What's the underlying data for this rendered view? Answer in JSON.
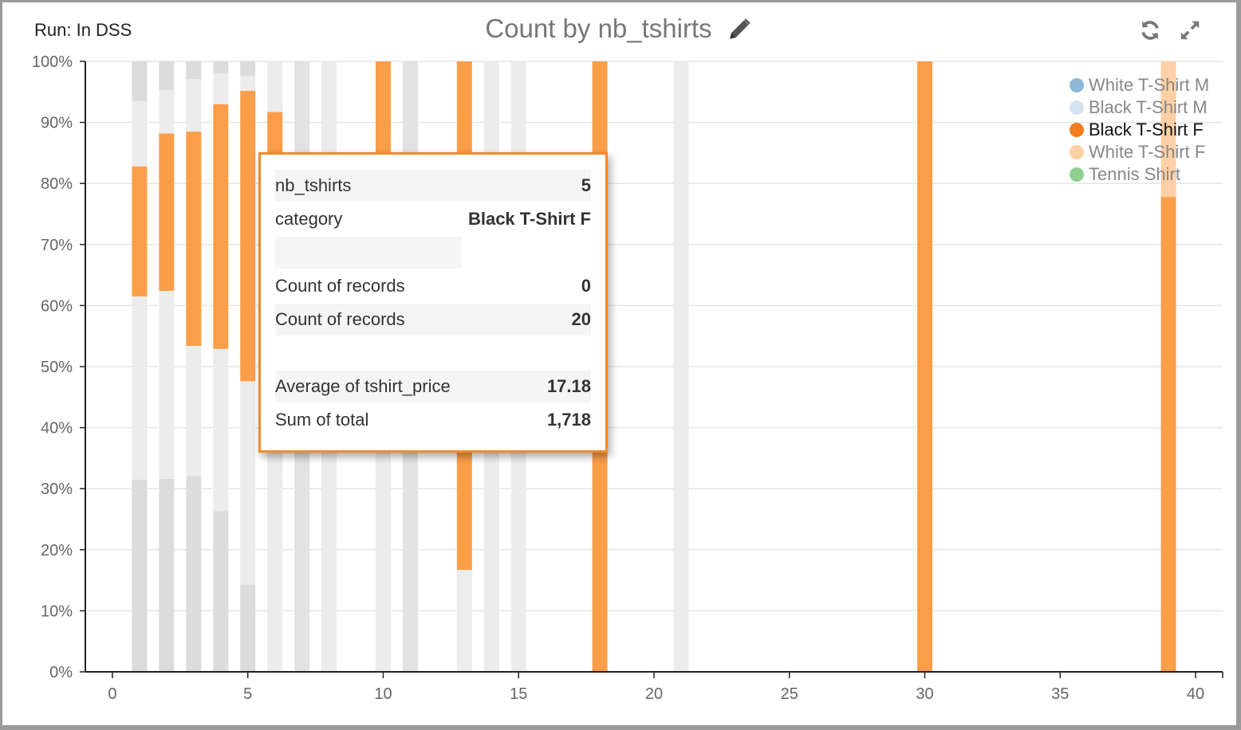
{
  "header": {
    "run_label": "Run: In DSS",
    "title": "Count by nb_tshirts"
  },
  "colors": {
    "orange": "#fb9e4a",
    "light_gray": "#ececec",
    "mid_gray": "#e2e2e2",
    "dark_gray": "#dcdcdc",
    "peach": "#fdd0a5"
  },
  "icons": {
    "edit": "pencil-icon",
    "refresh": "refresh-icon",
    "expand": "expand-icon"
  },
  "chart_data": {
    "type": "bar",
    "stacked_percent": true,
    "title": "Count by nb_tshirts",
    "xlim": [
      -1,
      41
    ],
    "ylim": [
      0,
      100
    ],
    "x_ticks": [
      "0",
      "5",
      "10",
      "15",
      "20",
      "25",
      "30",
      "35",
      "40"
    ],
    "y_ticks": [
      "0%",
      "10%",
      "20%",
      "30%",
      "40%",
      "50%",
      "60%",
      "70%",
      "80%",
      "90%",
      "100%"
    ],
    "highlighted_series": "Black T-Shirt F",
    "series_names": [
      "White T-Shirt M",
      "Black T-Shirt M",
      "Black T-Shirt F",
      "White T-Shirt F",
      "Tennis Shirt"
    ],
    "series_colors": [
      "#8db8d8",
      "#d5e3ef",
      "#f57e1e",
      "#fdd0a5",
      "#8fcf8f"
    ],
    "bars": [
      {
        "x": 1,
        "segments": [
          {
            "from": 0,
            "to": 31.5,
            "fill": "dark"
          },
          {
            "from": 31.5,
            "to": 61.5,
            "fill": "light"
          },
          {
            "from": 61.5,
            "to": 82.8,
            "fill": "orange"
          },
          {
            "from": 82.8,
            "to": 93.5,
            "fill": "light"
          },
          {
            "from": 93.5,
            "to": 100,
            "fill": "dark"
          }
        ]
      },
      {
        "x": 2,
        "segments": [
          {
            "from": 0,
            "to": 31.6,
            "fill": "dark"
          },
          {
            "from": 31.6,
            "to": 62.4,
            "fill": "light"
          },
          {
            "from": 62.4,
            "to": 88.2,
            "fill": "orange"
          },
          {
            "from": 88.2,
            "to": 95.3,
            "fill": "light"
          },
          {
            "from": 95.3,
            "to": 100,
            "fill": "dark"
          }
        ]
      },
      {
        "x": 3,
        "segments": [
          {
            "from": 0,
            "to": 32.1,
            "fill": "dark"
          },
          {
            "from": 32.1,
            "to": 53.4,
            "fill": "light"
          },
          {
            "from": 53.4,
            "to": 88.5,
            "fill": "orange"
          },
          {
            "from": 88.5,
            "to": 97.1,
            "fill": "light"
          },
          {
            "from": 97.1,
            "to": 100,
            "fill": "dark"
          }
        ]
      },
      {
        "x": 4,
        "segments": [
          {
            "from": 0,
            "to": 26.3,
            "fill": "dark"
          },
          {
            "from": 26.3,
            "to": 52.9,
            "fill": "light"
          },
          {
            "from": 52.9,
            "to": 93.0,
            "fill": "orange"
          },
          {
            "from": 93.0,
            "to": 98.1,
            "fill": "light"
          },
          {
            "from": 98.1,
            "to": 100,
            "fill": "dark"
          }
        ]
      },
      {
        "x": 5,
        "segments": [
          {
            "from": 0,
            "to": 14.3,
            "fill": "dark"
          },
          {
            "from": 14.3,
            "to": 47.6,
            "fill": "light"
          },
          {
            "from": 47.6,
            "to": 95.2,
            "fill": "orange"
          },
          {
            "from": 95.2,
            "to": 97.6,
            "fill": "light"
          },
          {
            "from": 97.6,
            "to": 100,
            "fill": "dark"
          }
        ]
      },
      {
        "x": 6,
        "segments": [
          {
            "from": 0,
            "to": 91.7,
            "fill": "light"
          },
          {
            "from": 91.7,
            "to": 100,
            "fill": "light"
          },
          {
            "from": 80.0,
            "to": 91.7,
            "fill": "orange"
          }
        ]
      },
      {
        "x": 7,
        "segments": [
          {
            "from": 0,
            "to": 100,
            "fill": "mid"
          }
        ]
      },
      {
        "x": 8,
        "segments": [
          {
            "from": 0,
            "to": 100,
            "fill": "light"
          }
        ]
      },
      {
        "x": 10,
        "segments": [
          {
            "from": 0,
            "to": 75,
            "fill": "light"
          },
          {
            "from": 75,
            "to": 100,
            "fill": "orange"
          }
        ]
      },
      {
        "x": 11,
        "segments": [
          {
            "from": 0,
            "to": 100,
            "fill": "mid"
          }
        ]
      },
      {
        "x": 13,
        "segments": [
          {
            "from": 0,
            "to": 16.7,
            "fill": "light"
          },
          {
            "from": 16.7,
            "to": 100,
            "fill": "orange"
          }
        ]
      },
      {
        "x": 14,
        "segments": [
          {
            "from": 0,
            "to": 100,
            "fill": "light"
          }
        ]
      },
      {
        "x": 15,
        "segments": [
          {
            "from": 0,
            "to": 100,
            "fill": "light"
          }
        ]
      },
      {
        "x": 18,
        "segments": [
          {
            "from": 0,
            "to": 100,
            "fill": "orange"
          }
        ]
      },
      {
        "x": 21,
        "segments": [
          {
            "from": 0,
            "to": 100,
            "fill": "light"
          }
        ]
      },
      {
        "x": 30,
        "segments": [
          {
            "from": 0,
            "to": 100,
            "fill": "orange"
          }
        ]
      },
      {
        "x": 39,
        "segments": [
          {
            "from": 0,
            "to": 77.8,
            "fill": "orange"
          },
          {
            "from": 77.8,
            "to": 100,
            "fill": "peach"
          }
        ]
      }
    ]
  },
  "tooltip": {
    "rows": [
      {
        "label": "nb_tshirts",
        "value": "5"
      },
      {
        "label": "category",
        "value": "Black T-Shirt F"
      },
      {
        "label": "Count of records",
        "value": "0"
      },
      {
        "label": "Count of records",
        "value": "20"
      },
      {
        "label": "Average of tshirt_price",
        "value": "17.18"
      },
      {
        "label": "Sum of total",
        "value": "1,718"
      }
    ]
  }
}
